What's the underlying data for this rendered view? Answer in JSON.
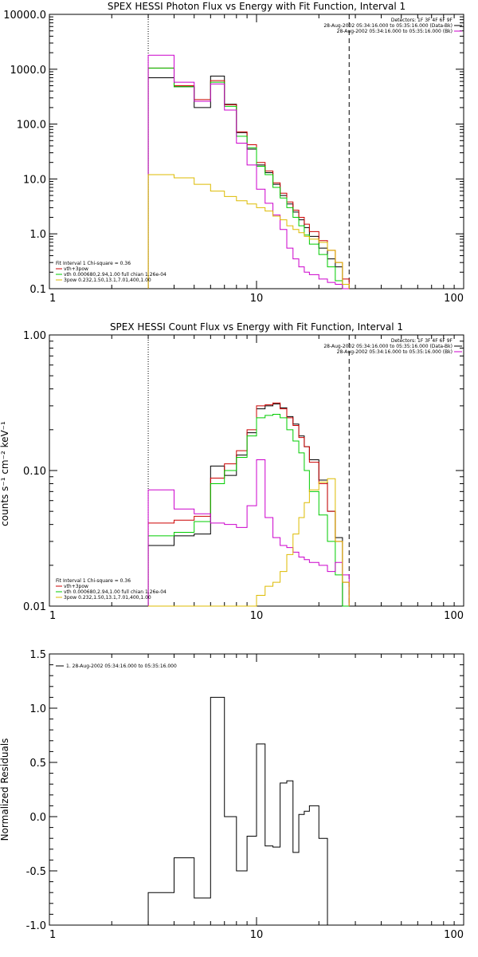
{
  "chart_data": [
    {
      "type": "line",
      "title": "SPEX HESSI Photon Flux vs Energy with Fit Function, Interval 1",
      "xlabel": "",
      "ylabel": "",
      "xscale": "log",
      "yscale": "log",
      "xlim": [
        1,
        100
      ],
      "ylim": [
        0.1,
        10000
      ],
      "xticks": [
        1,
        10,
        100
      ],
      "xticklabels": [
        "1",
        "10",
        "100"
      ],
      "yticks": [
        0.1,
        1,
        10,
        100,
        1000,
        10000
      ],
      "yticklabels": [
        "0.1",
        "1.0",
        "10.0",
        "100.0",
        "1000.0",
        "10000.0"
      ],
      "fit_range": [
        3,
        28
      ],
      "header_lines": [
        "Detectors: 1F 3F 4F 6F 9F",
        "28-Aug-2002 05:34:16.000 to 05:35:16.000 (Data-Bk)",
        "28-Aug-2002 05:34:16.000 to 05:35:16.000 (Bk)"
      ],
      "legend": [
        "Fit Interval 1    Chi-square = 0.36",
        "vth+3pow",
        "vth 0.000680,2.94,1.00   full chian 1.26e-04",
        "3pow 0.232,1.50,13.1,7.01,400,1.00"
      ],
      "bin_edges": [
        3,
        4,
        5,
        6,
        7,
        8,
        9,
        10,
        11,
        12,
        13,
        14,
        15,
        16,
        17,
        18,
        20,
        22,
        24,
        26,
        28
      ],
      "series": [
        {
          "color": "#000000",
          "values": [
            700,
            480,
            200,
            750,
            230,
            70,
            35,
            18,
            13,
            8,
            5,
            3.5,
            2.5,
            1.8,
            1.3,
            0.9,
            0.55,
            0.35,
            0.25,
            0.1
          ]
        },
        {
          "color": "#cc0000",
          "values": [
            1050,
            500,
            280,
            620,
            225,
            72,
            42,
            20,
            14,
            8.5,
            5.5,
            3.8,
            2.7,
            2.0,
            1.5,
            1.1,
            0.75,
            0.5,
            0.3,
            0.15
          ]
        },
        {
          "color": "#00cc00",
          "values": [
            1050,
            480,
            260,
            580,
            210,
            60,
            37,
            17,
            12,
            7,
            4.5,
            3.0,
            2.0,
            1.4,
            0.95,
            0.65,
            0.42,
            0.25,
            0.14,
            0.1
          ]
        },
        {
          "color": "#cc00cc",
          "values": [
            1800,
            580,
            260,
            540,
            180,
            45,
            18,
            6.5,
            3.6,
            2.2,
            1.2,
            0.55,
            0.35,
            0.25,
            0.2,
            0.18,
            0.15,
            0.13,
            0.12,
            0.1
          ]
        },
        {
          "color": "#ddbb00",
          "values": [
            12,
            10.5,
            8,
            6,
            4.8,
            4,
            3.5,
            3,
            2.6,
            2.1,
            1.8,
            1.4,
            1.2,
            1.05,
            0.9,
            0.8,
            0.7,
            0.5,
            0.3,
            0.12
          ]
        }
      ]
    },
    {
      "type": "line",
      "title": "SPEX HESSI Count Flux vs Energy with Fit Function, Interval 1",
      "xlabel": "",
      "ylabel": "counts s⁻¹ cm⁻² keV⁻¹",
      "xscale": "log",
      "yscale": "log",
      "xlim": [
        1,
        100
      ],
      "ylim": [
        0.01,
        1
      ],
      "xticks": [
        1,
        10,
        100
      ],
      "xticklabels": [
        "1",
        "10",
        "100"
      ],
      "yticks": [
        0.01,
        0.1,
        1
      ],
      "yticklabels": [
        "0.01",
        "0.10",
        "1.00"
      ],
      "fit_range": [
        3,
        28
      ],
      "header_lines": [
        "Detectors: 1F 3F 4F 6F 9F",
        "28-Aug-2002 05:34:16.000 to 05:35:16.000 (Data-Bk)",
        "28-Aug-2002 05:34:16.000 to 05:35:16.000 (Bk)"
      ],
      "legend": [
        "Fit Interval 1    Chi-square = 0.36",
        "vth+3pow",
        "vth 0.000680,2.94,1.00   full chian 1.26e-04",
        "3pow 0.232,1.50,13.1,7.01,400,1.00"
      ],
      "bin_edges": [
        3,
        4,
        5,
        6,
        7,
        8,
        9,
        10,
        11,
        12,
        13,
        14,
        15,
        16,
        17,
        18,
        20,
        22,
        24,
        26,
        28
      ],
      "series": [
        {
          "color": "#000000",
          "values": [
            0.028,
            0.033,
            0.034,
            0.108,
            0.092,
            0.13,
            0.19,
            0.285,
            0.3,
            0.31,
            0.29,
            0.25,
            0.22,
            0.18,
            0.15,
            0.12,
            0.085,
            0.05,
            0.032,
            0.01
          ]
        },
        {
          "color": "#cc0000",
          "values": [
            0.041,
            0.043,
            0.046,
            0.088,
            0.112,
            0.14,
            0.2,
            0.3,
            0.305,
            0.315,
            0.285,
            0.245,
            0.215,
            0.175,
            0.15,
            0.115,
            0.08,
            0.05,
            0.03,
            0.015
          ]
        },
        {
          "color": "#00cc00",
          "values": [
            0.033,
            0.035,
            0.042,
            0.08,
            0.1,
            0.125,
            0.18,
            0.245,
            0.255,
            0.26,
            0.245,
            0.2,
            0.165,
            0.135,
            0.1,
            0.07,
            0.047,
            0.03,
            0.017,
            0.01
          ]
        },
        {
          "color": "#cc00cc",
          "values": [
            0.072,
            0.052,
            0.048,
            0.041,
            0.04,
            0.038,
            0.055,
            0.12,
            0.045,
            0.032,
            0.028,
            0.027,
            0.025,
            0.023,
            0.022,
            0.021,
            0.02,
            0.018,
            0.021,
            0.017
          ]
        },
        {
          "color": "#ddbb00",
          "values": [
            0.008,
            0.008,
            0.008,
            0.008,
            0.008,
            0.009,
            0.01,
            0.012,
            0.014,
            0.015,
            0.018,
            0.024,
            0.034,
            0.045,
            0.058,
            0.072,
            0.082,
            0.087,
            0.03,
            0.015
          ]
        }
      ]
    },
    {
      "type": "line",
      "title": "",
      "xlabel": "",
      "ylabel": "Normalized Residuals",
      "xscale": "log",
      "yscale": "linear",
      "xlim": [
        1,
        100
      ],
      "ylim": [
        -1,
        1.5
      ],
      "xticks": [
        1,
        10,
        100
      ],
      "xticklabels": [
        "1",
        "10",
        "100"
      ],
      "yticks": [
        -1,
        -0.5,
        0,
        0.5,
        1,
        1.5
      ],
      "yticklabels": [
        "-1.0",
        "-0.5",
        "0.0",
        "0.5",
        "1.0",
        "1.5"
      ],
      "legend": [
        "1. 28-Aug-2002 05:34:16.000 to 05:35:16.000"
      ],
      "bin_edges": [
        3,
        4,
        5,
        6,
        7,
        8,
        9,
        10,
        11,
        12,
        13,
        14,
        15,
        16,
        17,
        18,
        20,
        22,
        24,
        26,
        28
      ],
      "series": [
        {
          "color": "#000000",
          "values": [
            -0.7,
            -0.38,
            -0.75,
            1.1,
            0.0,
            -0.5,
            -0.18,
            0.67,
            -0.27,
            -0.28,
            0.31,
            0.33,
            -0.33,
            0.02,
            0.05,
            0.1,
            -0.2,
            -1.0,
            -1.0,
            -1.0
          ]
        }
      ]
    }
  ]
}
